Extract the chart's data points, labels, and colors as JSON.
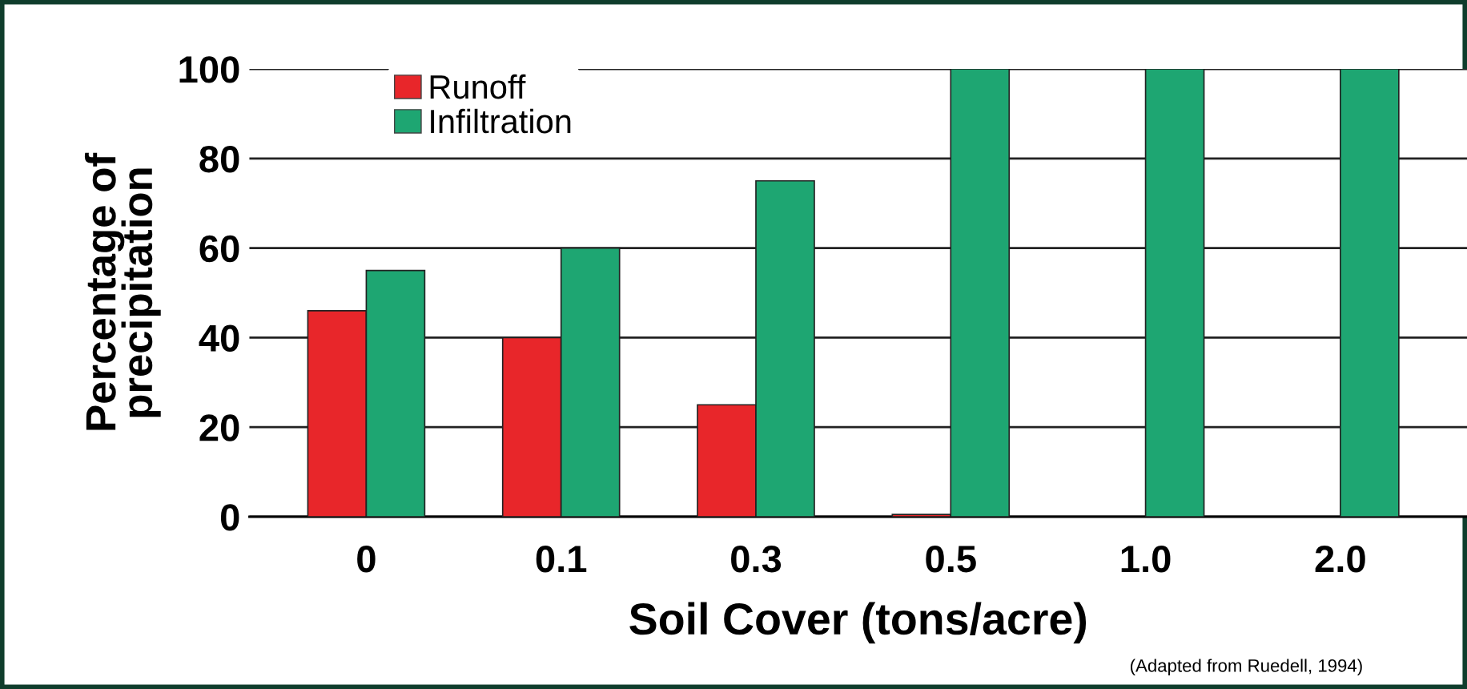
{
  "chart_data": {
    "type": "bar",
    "categories": [
      "0",
      "0.1",
      "0.3",
      "0.5",
      "1.0",
      "2.0"
    ],
    "series": [
      {
        "name": "Runoff",
        "color": "#e8262a",
        "values": [
          46,
          40,
          25,
          0.5,
          0,
          0
        ]
      },
      {
        "name": "Infiltration",
        "color": "#1ea672",
        "values": [
          55,
          60,
          75,
          100,
          100,
          100
        ]
      }
    ],
    "xlabel": "Soil Cover (tons/acre)",
    "ylabel": "Percentage of\nprecipitation",
    "ylim": [
      0,
      100
    ],
    "yticks": [
      0,
      20,
      40,
      60,
      80,
      100
    ],
    "grid": "y",
    "legend": "top left",
    "annotations": [
      "(Adapted from Ruedell, 1994)"
    ]
  }
}
